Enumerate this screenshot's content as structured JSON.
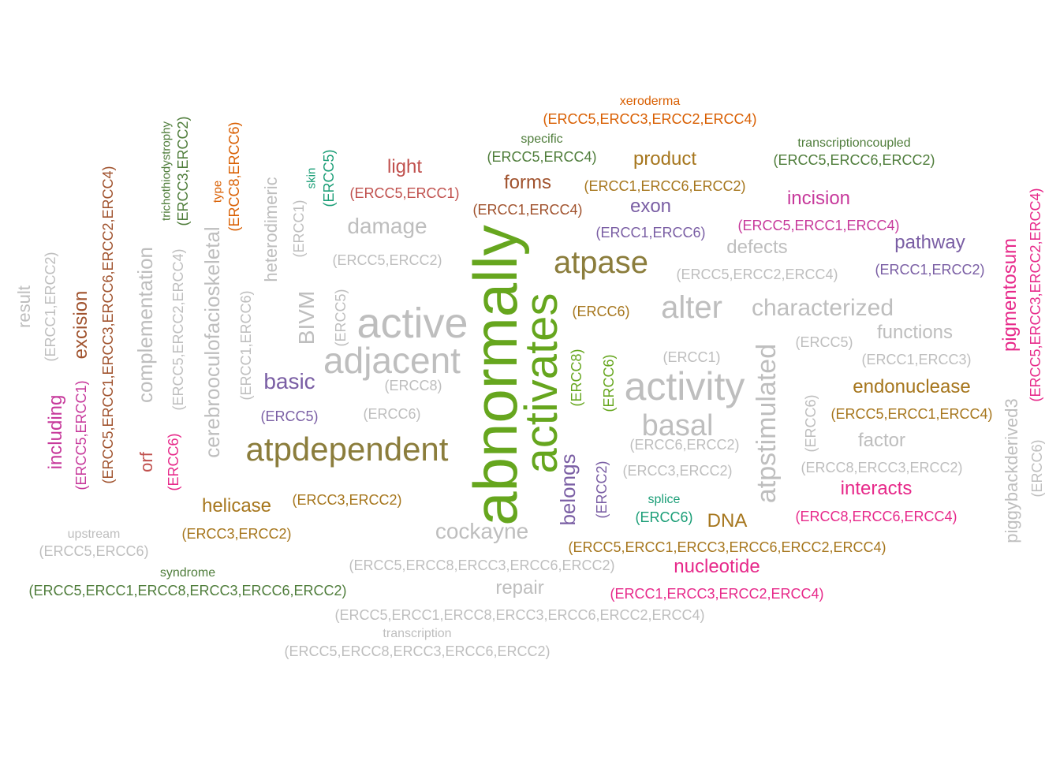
{
  "colors": {
    "gray": "#bebebe",
    "olive": "#8b7d3c",
    "green": "#66a61e",
    "purple": "#7a5ea4",
    "magenta": "#c7399b",
    "pink": "#e7298a",
    "orange_brown": "#a6761d",
    "orange": "#d95f02",
    "dark_green": "#4f7d3b",
    "teal": "#1b9e77",
    "red": "#c0504d",
    "rust": "#a0522d"
  },
  "words": [
    {
      "text": "abnormally",
      "color": "green"
    },
    {
      "text": "activates",
      "color": "green"
    },
    {
      "text": "active",
      "color": "gray"
    },
    {
      "text": "adjacent",
      "color": "gray"
    },
    {
      "text": "activity",
      "color": "gray"
    },
    {
      "text": "atpase",
      "color": "olive"
    },
    {
      "text": "atpdependent",
      "color": "olive"
    },
    {
      "text": "alter",
      "color": "gray"
    },
    {
      "text": "atpstimulated",
      "color": "gray"
    },
    {
      "text": "basal",
      "color": "gray"
    },
    {
      "text": "characterized",
      "color": "gray"
    },
    {
      "text": "cerebrooculofacioskeletal",
      "color": "gray"
    },
    {
      "text": "complementation",
      "color": "gray"
    },
    {
      "text": "damage",
      "color": "gray"
    },
    {
      "text": "BIVM",
      "color": "gray"
    },
    {
      "text": "cockayne",
      "color": "gray"
    },
    {
      "text": "heterodimeric",
      "color": "gray"
    },
    {
      "text": "pathway",
      "color": "purple"
    },
    {
      "text": "defects",
      "color": "gray"
    },
    {
      "text": "functions",
      "color": "gray"
    },
    {
      "text": "factor",
      "color": "gray"
    },
    {
      "text": "repair",
      "color": "gray"
    },
    {
      "text": "result",
      "color": "gray"
    },
    {
      "text": "piggybackderived3",
      "color": "gray"
    },
    {
      "text": "basic",
      "color": "purple"
    },
    {
      "text": "exon",
      "color": "purple"
    },
    {
      "text": "belongs",
      "color": "purple"
    },
    {
      "text": "incision",
      "color": "magenta"
    },
    {
      "text": "including",
      "color": "magenta"
    },
    {
      "text": "pigmentosum",
      "color": "pink"
    },
    {
      "text": "interacts",
      "color": "pink"
    },
    {
      "text": "nucleotide",
      "color": "pink"
    },
    {
      "text": "light",
      "color": "red"
    },
    {
      "text": "forms",
      "color": "rust"
    },
    {
      "text": "excision",
      "color": "rust"
    },
    {
      "text": "orf",
      "color": "red"
    },
    {
      "text": "product",
      "color": "orange_brown"
    },
    {
      "text": "endonuclease",
      "color": "orange_brown"
    },
    {
      "text": "helicase",
      "color": "orange_brown"
    },
    {
      "text": "DNA",
      "color": "orange_brown"
    },
    {
      "text": "type",
      "color": "orange"
    },
    {
      "text": "xeroderma",
      "color": "orange"
    },
    {
      "text": "specific",
      "color": "dark_green"
    },
    {
      "text": "transcriptioncoupled",
      "color": "dark_green"
    },
    {
      "text": "trichothiodystrophy",
      "color": "dark_green"
    },
    {
      "text": "syndrome",
      "color": "dark_green"
    },
    {
      "text": "skin",
      "color": "teal"
    },
    {
      "text": "splice",
      "color": "teal"
    },
    {
      "text": "upstream",
      "color": "gray"
    },
    {
      "text": "transcription",
      "color": "gray"
    },
    {
      "text": "(ERCC5,ERCC3,ERCC2,ERCC4)",
      "color": "orange"
    },
    {
      "text": "(ERCC5,ERCC4)",
      "color": "dark_green"
    },
    {
      "text": "(ERCC5,ERCC6,ERCC2)",
      "color": "dark_green"
    },
    {
      "text": "(ERCC5,ERCC1)",
      "color": "red"
    },
    {
      "text": "(ERCC1,ERCC6,ERCC2)",
      "color": "orange_brown"
    },
    {
      "text": "(ERCC1,ERCC4)",
      "color": "rust"
    },
    {
      "text": "(ERCC5,ERCC1,ERCC4)",
      "color": "magenta"
    },
    {
      "text": "(ERCC1,ERCC6)",
      "color": "purple"
    },
    {
      "text": "(ERCC1,ERCC2)",
      "color": "purple"
    },
    {
      "text": "(ERCC5,ERCC2)",
      "color": "gray"
    },
    {
      "text": "(ERCC5,ERCC2,ERCC4)",
      "color": "gray"
    },
    {
      "text": "(ERCC6)",
      "color": "orange_brown"
    },
    {
      "text": "(ERCC5)",
      "color": "gray"
    },
    {
      "text": "(ERCC1)",
      "color": "gray"
    },
    {
      "text": "(ERCC1,ERCC3)",
      "color": "gray"
    },
    {
      "text": "(ERCC8)",
      "color": "gray"
    },
    {
      "text": "(ERCC6)",
      "color": "gray"
    },
    {
      "text": "(ERCC5,ERCC1,ERCC4)",
      "color": "orange_brown"
    },
    {
      "text": "(ERCC5)",
      "color": "purple"
    },
    {
      "text": "(ERCC6,ERCC2)",
      "color": "gray"
    },
    {
      "text": "(ERCC3,ERCC2)",
      "color": "gray"
    },
    {
      "text": "(ERCC8,ERCC3,ERCC2)",
      "color": "gray"
    },
    {
      "text": "(ERCC3,ERCC2)",
      "color": "orange_brown"
    },
    {
      "text": "(ERCC3,ERCC2)",
      "color": "orange_brown"
    },
    {
      "text": "(ERCC6)",
      "color": "teal"
    },
    {
      "text": "(ERCC8,ERCC6,ERCC4)",
      "color": "pink"
    },
    {
      "text": "(ERCC5,ERCC1,ERCC3,ERCC6,ERCC2,ERCC4)",
      "color": "orange_brown"
    },
    {
      "text": "(ERCC5,ERCC6)",
      "color": "gray"
    },
    {
      "text": "(ERCC5,ERCC8,ERCC3,ERCC6,ERCC2)",
      "color": "gray"
    },
    {
      "text": "(ERCC1,ERCC3,ERCC2,ERCC4)",
      "color": "pink"
    },
    {
      "text": "(ERCC5,ERCC1,ERCC8,ERCC3,ERCC6,ERCC2)",
      "color": "dark_green"
    },
    {
      "text": "(ERCC5,ERCC1,ERCC8,ERCC3,ERCC6,ERCC2,ERCC4)",
      "color": "gray"
    },
    {
      "text": "(ERCC5,ERCC8,ERCC3,ERCC6,ERCC2)",
      "color": "gray"
    },
    {
      "text": "(ERCC1,ERCC2)",
      "color": "gray"
    },
    {
      "text": "(ERCC5,ERCC1)",
      "color": "magenta"
    },
    {
      "text": "(ERCC5,ERCC1,ERCC3,ERCC6,ERCC2,ERCC4)",
      "color": "rust"
    },
    {
      "text": "(ERCC6)",
      "color": "pink"
    },
    {
      "text": "(ERCC5,ERCC2,ERCC4)",
      "color": "gray"
    },
    {
      "text": "(ERCC3,ERCC2)",
      "color": "dark_green"
    },
    {
      "text": "(ERCC8,ERCC6)",
      "color": "orange"
    },
    {
      "text": "(ERCC1)",
      "color": "gray"
    },
    {
      "text": "(ERCC1,ERCC6)",
      "color": "gray"
    },
    {
      "text": "(ERCC5)",
      "color": "teal"
    },
    {
      "text": "(ERCC5)",
      "color": "gray"
    },
    {
      "text": "(ERCC8)",
      "color": "green"
    },
    {
      "text": "(ERCC6)",
      "color": "green"
    },
    {
      "text": "(ERCC2)",
      "color": "purple"
    },
    {
      "text": "(ERCC6)",
      "color": "gray"
    },
    {
      "text": "(ERCC5,ERCC3,ERCC2,ERCC4)",
      "color": "pink"
    },
    {
      "text": "(ERCC6)",
      "color": "gray"
    }
  ]
}
